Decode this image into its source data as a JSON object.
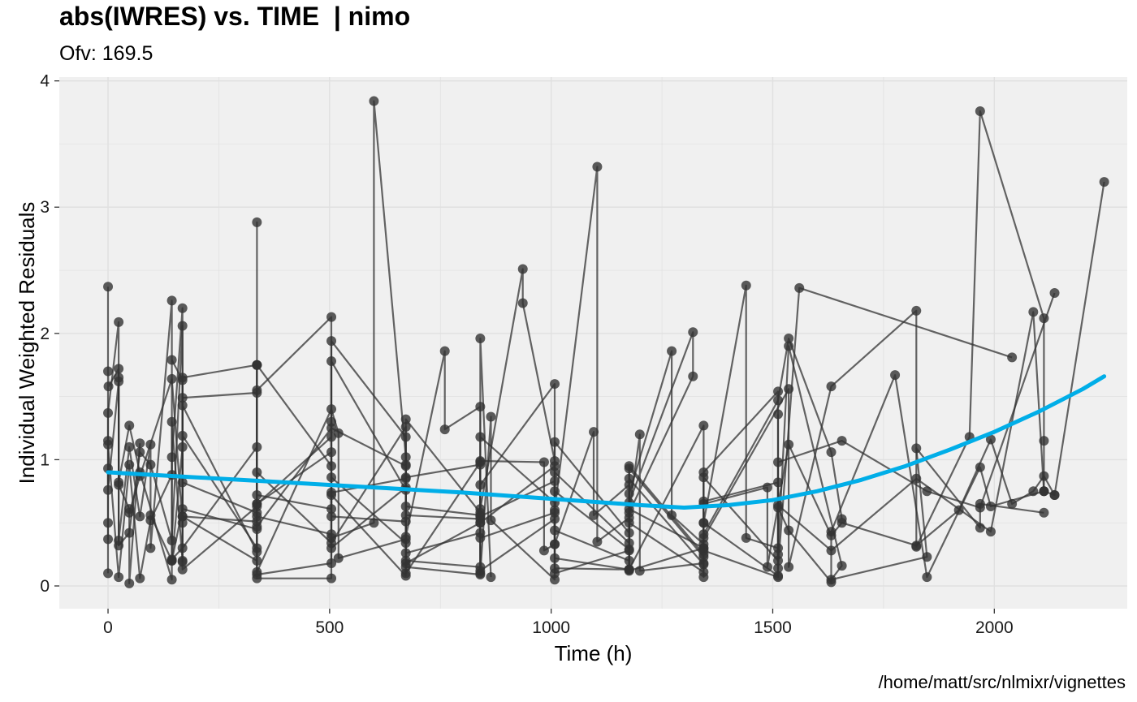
{
  "chart_data": {
    "type": "line",
    "title": "abs(IWRES) vs. TIME  | nimo",
    "subtitle": "Ofv: 169.5",
    "caption": "/home/matt/src/nlmixr/vignettes",
    "xlabel": "Time (h)",
    "ylabel": "Individual Weighted Residuals",
    "xlim": [
      -110,
      2300
    ],
    "ylim": [
      -0.18,
      4.03
    ],
    "xticks": [
      0,
      500,
      1000,
      1500,
      2000
    ],
    "yticks": [
      0,
      1,
      2,
      3,
      4
    ],
    "grid": true,
    "colors": {
      "panel": "#f0f0f0",
      "grid": "#e0e0e0",
      "points": "#333333",
      "smooth": "#00aee8"
    },
    "series": [
      {
        "values": [
          [
            0,
            2.37
          ],
          [
            0,
            0.37
          ],
          [
            0,
            1.15
          ],
          [
            0,
            0.5
          ],
          [
            0,
            1.7
          ],
          [
            1,
            1.58
          ],
          [
            24,
            1.72
          ],
          [
            24,
            0.8
          ],
          [
            48,
            0.61
          ],
          [
            48,
            0.02
          ],
          [
            72,
            1.13
          ]
        ]
      },
      {
        "values": [
          [
            0,
            0.1
          ],
          [
            0,
            1.37
          ],
          [
            24,
            2.09
          ],
          [
            24,
            0.82
          ],
          [
            48,
            1.27
          ],
          [
            72,
            0.9
          ],
          [
            144,
            0.05
          ],
          [
            144,
            1.02
          ],
          [
            168,
            2.2
          ],
          [
            168,
            0.55
          ],
          [
            336,
            0.2
          ],
          [
            336,
            2.88
          ],
          [
            336,
            0.09
          ],
          [
            504,
            0.18
          ],
          [
            504,
            1.3
          ],
          [
            504,
            0.74
          ],
          [
            672,
            0.85
          ],
          [
            672,
            0.96
          ]
        ]
      },
      {
        "values": [
          [
            0,
            0.93
          ],
          [
            0,
            0.76
          ],
          [
            24,
            1.62
          ],
          [
            24,
            0.36
          ],
          [
            48,
            1.1
          ],
          [
            72,
            0.55
          ],
          [
            96,
            1.12
          ],
          [
            96,
            0.3
          ],
          [
            144,
            2.26
          ],
          [
            144,
            0.2
          ],
          [
            168,
            1.1
          ],
          [
            168,
            1.49
          ],
          [
            336,
            1.53
          ],
          [
            336,
            0.06
          ],
          [
            504,
            0.06
          ],
          [
            504,
            0.38
          ],
          [
            600,
            0.5
          ],
          [
            600,
            3.84
          ],
          [
            672,
            1.02
          ],
          [
            672,
            0.26
          ],
          [
            840,
            0.42
          ],
          [
            840,
            1.96
          ],
          [
            864,
            0.07
          ]
        ]
      },
      {
        "values": [
          [
            0,
            1.12
          ],
          [
            24,
            0.07
          ],
          [
            48,
            0.96
          ],
          [
            72,
            0.06
          ],
          [
            96,
            0.52
          ],
          [
            144,
            0.88
          ],
          [
            144,
            1.3
          ],
          [
            168,
            0.2
          ],
          [
            168,
            1.65
          ],
          [
            336,
            1.75
          ],
          [
            336,
            0.9
          ],
          [
            504,
            0.34
          ],
          [
            672,
            1.26
          ],
          [
            672,
            0.1
          ],
          [
            840,
            0.98
          ],
          [
            840,
            0.1
          ],
          [
            864,
            1.34
          ],
          [
            864,
            0.52
          ],
          [
            1008,
            0.05
          ],
          [
            1008,
            1.14
          ],
          [
            1176,
            0.42
          ],
          [
            1176,
            0.12
          ],
          [
            1344,
            0.3
          ],
          [
            1344,
            0.5
          ],
          [
            1512,
            0.08
          ],
          [
            1512,
            1.36
          ]
        ]
      },
      {
        "values": [
          [
            24,
            1.65
          ],
          [
            24,
            0.32
          ],
          [
            48,
            0.42
          ],
          [
            72,
            1.06
          ],
          [
            96,
            0.96
          ],
          [
            144,
            0.36
          ],
          [
            168,
            2.06
          ],
          [
            168,
            0.82
          ],
          [
            336,
            0.58
          ],
          [
            336,
            1.75
          ],
          [
            504,
            0.95
          ],
          [
            504,
            1.78
          ],
          [
            672,
            0.76
          ],
          [
            672,
            0.39
          ],
          [
            760,
            1.86
          ],
          [
            760,
            1.24
          ],
          [
            840,
            1.42
          ],
          [
            840,
            0.5
          ],
          [
            1008,
            0.95
          ],
          [
            1008,
            0.1
          ],
          [
            1176,
            0.28
          ],
          [
            1176,
            0.85
          ],
          [
            1344,
            0.17
          ],
          [
            1344,
            0.41
          ],
          [
            1512,
            1.47
          ],
          [
            1536,
            1.96
          ],
          [
            1632,
            1.06
          ],
          [
            1656,
            0.53
          ]
        ]
      },
      {
        "values": [
          [
            48,
            0.58
          ],
          [
            72,
            0.87
          ],
          [
            144,
            1.64
          ],
          [
            168,
            0.5
          ],
          [
            168,
            1.19
          ],
          [
            336,
            0.3
          ],
          [
            336,
            1.55
          ],
          [
            504,
            2.13
          ],
          [
            504,
            0.3
          ],
          [
            672,
            0.78
          ],
          [
            672,
            0.15
          ],
          [
            840,
            0.09
          ],
          [
            840,
            0.8
          ],
          [
            1008,
            1.6
          ],
          [
            1008,
            0.44
          ],
          [
            1176,
            0.2
          ],
          [
            1176,
            0.95
          ],
          [
            1344,
            0.25
          ],
          [
            1344,
            0.67
          ],
          [
            1512,
            0.82
          ],
          [
            1512,
            0.25
          ],
          [
            1536,
            1.9
          ],
          [
            1656,
            0.16
          ],
          [
            1632,
            0.05
          ],
          [
            1848,
            0.23
          ],
          [
            1824,
            1.09
          ],
          [
            1968,
            0.46
          ],
          [
            1968,
            0.65
          ],
          [
            2112,
            0.58
          ]
        ]
      },
      {
        "values": [
          [
            96,
            0.56
          ],
          [
            144,
            0.2
          ],
          [
            168,
            0.61
          ],
          [
            336,
            0.45
          ],
          [
            336,
            0.11
          ],
          [
            504,
            1.4
          ],
          [
            520,
            1.21
          ],
          [
            520,
            0.22
          ],
          [
            672,
            0.37
          ],
          [
            672,
            1.32
          ],
          [
            840,
            0.58
          ],
          [
            840,
            0.12
          ],
          [
            1008,
            0.53
          ],
          [
            1008,
            0.22
          ],
          [
            1176,
            0.13
          ],
          [
            1176,
            0.5
          ],
          [
            1344,
            0.11
          ],
          [
            1344,
            0.86
          ],
          [
            1512,
            0.2
          ],
          [
            1512,
            0.62
          ],
          [
            1536,
            0.44
          ],
          [
            1632,
            0.03
          ],
          [
            1632,
            0.43
          ],
          [
            1776,
            1.67
          ],
          [
            1848,
            0.07
          ],
          [
            1968,
            0.94
          ],
          [
            1992,
            0.63
          ],
          [
            2112,
            0.75
          ],
          [
            2136,
            0.72
          ]
        ]
      },
      {
        "values": [
          [
            144,
            1.79
          ],
          [
            168,
            1.63
          ],
          [
            168,
            0.13
          ],
          [
            336,
            0.63
          ],
          [
            336,
            0.72
          ],
          [
            504,
            0.61
          ],
          [
            504,
            0.86
          ],
          [
            672,
            0.34
          ],
          [
            672,
            0.56
          ],
          [
            840,
            0.53
          ],
          [
            840,
            0.99
          ],
          [
            984,
            0.98
          ],
          [
            984,
            0.28
          ],
          [
            1008,
            0.33
          ],
          [
            1008,
            0.75
          ],
          [
            1176,
            0.29
          ],
          [
            1176,
            0.61
          ],
          [
            1344,
            0.3
          ],
          [
            1344,
            0.5
          ],
          [
            1440,
            2.38
          ],
          [
            1440,
            0.38
          ],
          [
            1512,
            0.3
          ],
          [
            1512,
            0.14
          ],
          [
            1560,
            2.36
          ],
          [
            2040,
            1.81
          ]
        ]
      },
      {
        "values": [
          [
            168,
            0.19
          ],
          [
            168,
            1.43
          ],
          [
            336,
            0.27
          ],
          [
            336,
            0.55
          ],
          [
            504,
            0.41
          ],
          [
            504,
            0.72
          ],
          [
            672,
            0.08
          ],
          [
            672,
            0.2
          ],
          [
            840,
            0.15
          ],
          [
            840,
            0.55
          ],
          [
            1008,
            0.83
          ],
          [
            1008,
            0.6
          ],
          [
            1104,
            3.32
          ],
          [
            1104,
            0.35
          ],
          [
            1176,
            0.54
          ],
          [
            1176,
            0.13
          ],
          [
            1344,
            1.27
          ],
          [
            1344,
            0.07
          ],
          [
            1344,
            0.38
          ],
          [
            1536,
            1.56
          ],
          [
            1536,
            0.15
          ],
          [
            1632,
            1.58
          ],
          [
            1824,
            2.18
          ],
          [
            1824,
            0.31
          ],
          [
            1944,
            1.18
          ],
          [
            1968,
            3.76
          ],
          [
            2112,
            2.12
          ],
          [
            2112,
            1.15
          ],
          [
            2112,
            0.75
          ]
        ]
      },
      {
        "values": [
          [
            144,
            0.21
          ],
          [
            168,
            0.3
          ],
          [
            336,
            1.1
          ],
          [
            336,
            0.65
          ],
          [
            504,
            1.18
          ],
          [
            504,
            1.94
          ],
          [
            672,
            1.18
          ],
          [
            672,
            0.86
          ],
          [
            840,
            0.96
          ],
          [
            840,
            0.61
          ],
          [
            936,
            2.51
          ],
          [
            936,
            2.24
          ],
          [
            1008,
            0.99
          ],
          [
            1008,
            0.14
          ],
          [
            1176,
            0.13
          ],
          [
            1176,
            0.73
          ],
          [
            1272,
            1.86
          ],
          [
            1272,
            0.56
          ],
          [
            1344,
            0.33
          ],
          [
            1344,
            0.9
          ],
          [
            1512,
            1.54
          ],
          [
            1512,
            0.64
          ],
          [
            1632,
            0.28
          ],
          [
            1824,
            0.85
          ],
          [
            1992,
            0.43
          ],
          [
            2088,
            2.17
          ],
          [
            2112,
            0.75
          ]
        ]
      },
      {
        "values": [
          [
            168,
            0.55
          ],
          [
            336,
            0.51
          ],
          [
            336,
            0.65
          ],
          [
            504,
            1.06
          ],
          [
            504,
            0.55
          ],
          [
            672,
            0.51
          ],
          [
            672,
            0.18
          ],
          [
            840,
            0.5
          ],
          [
            840,
            0.38
          ],
          [
            1008,
            0.58
          ],
          [
            1008,
            0.33
          ],
          [
            1096,
            1.22
          ],
          [
            1096,
            0.56
          ],
          [
            1176,
            0.8
          ],
          [
            1176,
            0.66
          ],
          [
            1320,
            2.01
          ],
          [
            1320,
            1.66
          ],
          [
            1176,
            0.58
          ],
          [
            1200,
            1.2
          ],
          [
            1200,
            0.12
          ],
          [
            1344,
            0.18
          ],
          [
            1344,
            0.28
          ],
          [
            1512,
            0.07
          ],
          [
            1512,
            0.98
          ],
          [
            1656,
            1.15
          ],
          [
            1848,
            0.75
          ],
          [
            1968,
            0.62
          ],
          [
            2136,
            2.32
          ]
        ]
      },
      {
        "values": [
          [
            336,
            1.75
          ],
          [
            336,
            0.47
          ],
          [
            504,
            1.25
          ],
          [
            672,
            0.95
          ],
          [
            672,
            0.63
          ],
          [
            840,
            0.56
          ],
          [
            840,
            1.18
          ],
          [
            1008,
            0.66
          ],
          [
            1008,
            0.9
          ],
          [
            1176,
            0.34
          ],
          [
            1176,
            0.93
          ],
          [
            1344,
            0.23
          ],
          [
            1344,
            0.65
          ],
          [
            1488,
            0.78
          ],
          [
            1488,
            0.15
          ],
          [
            1536,
            1.12
          ],
          [
            1632,
            0.4
          ],
          [
            1656,
            0.5
          ],
          [
            1824,
            0.32
          ],
          [
            1920,
            0.6
          ],
          [
            1992,
            1.16
          ],
          [
            2040,
            0.65
          ],
          [
            2088,
            0.75
          ],
          [
            2112,
            0.87
          ],
          [
            2136,
            0.72
          ],
          [
            2248,
            3.2
          ]
        ]
      }
    ],
    "smooth": {
      "x": [
        0,
        200,
        400,
        600,
        800,
        1000,
        1200,
        1300,
        1400,
        1500,
        1600,
        1700,
        1800,
        1900,
        2000,
        2100,
        2200,
        2248
      ],
      "y": [
        0.9,
        0.86,
        0.82,
        0.78,
        0.74,
        0.69,
        0.64,
        0.62,
        0.64,
        0.68,
        0.75,
        0.84,
        0.95,
        1.08,
        1.22,
        1.38,
        1.56,
        1.66
      ]
    }
  }
}
